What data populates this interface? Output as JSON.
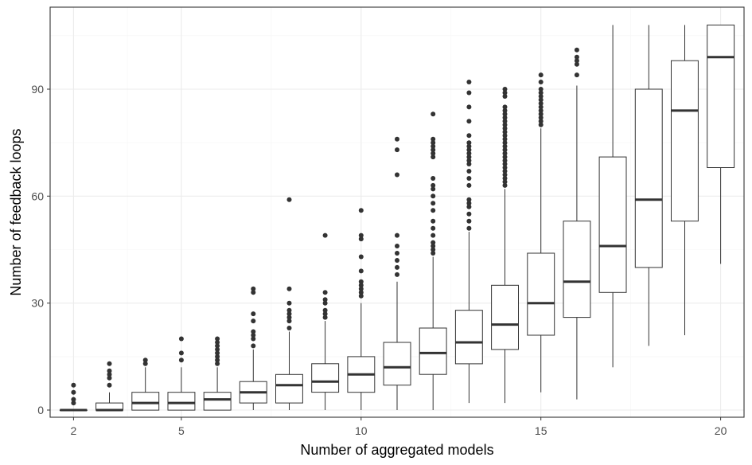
{
  "chart_data": {
    "type": "boxplot",
    "xlabel": "Number of aggregated models",
    "ylabel": "Number of feedback loops",
    "xlim": [
      1.35,
      20.65
    ],
    "ylim": [
      -2,
      113
    ],
    "x_ticks": [
      2,
      5,
      10,
      15,
      20
    ],
    "y_ticks": [
      0,
      30,
      60,
      90
    ],
    "grid": true,
    "legend": "none",
    "colors": {
      "box_fill": "#ffffff",
      "box_stroke": "#333333",
      "median": "#333333",
      "outlier": "#333333",
      "grid_major": "#ebebeb",
      "grid_minor": "#f5f5f5",
      "panel_border": "#333333"
    },
    "boxes": [
      {
        "x": 2,
        "min": 0,
        "q1": 0,
        "median": 0,
        "q3": 0,
        "max": 0,
        "outliers": [
          2,
          3,
          5,
          7
        ]
      },
      {
        "x": 3,
        "min": 0,
        "q1": 0,
        "median": 0,
        "q3": 2,
        "max": 5,
        "outliers": [
          7,
          9,
          10,
          11,
          13
        ]
      },
      {
        "x": 4,
        "min": 0,
        "q1": 0,
        "median": 2,
        "q3": 5,
        "max": 12,
        "outliers": [
          13,
          14
        ]
      },
      {
        "x": 5,
        "min": 0,
        "q1": 0,
        "median": 2,
        "q3": 5,
        "max": 12,
        "outliers": [
          14,
          16,
          20
        ]
      },
      {
        "x": 6,
        "min": 0,
        "q1": 0,
        "median": 3,
        "q3": 5,
        "max": 12,
        "outliers": [
          13,
          14,
          15,
          16,
          17,
          18,
          19,
          20
        ]
      },
      {
        "x": 7,
        "min": 0,
        "q1": 2,
        "median": 5,
        "q3": 8,
        "max": 17,
        "outliers": [
          18,
          20,
          21,
          22,
          25,
          27,
          33,
          34
        ]
      },
      {
        "x": 8,
        "min": 0,
        "q1": 2,
        "median": 7,
        "q3": 10,
        "max": 22,
        "outliers": [
          23,
          25,
          26,
          27,
          28,
          30,
          34,
          59
        ]
      },
      {
        "x": 9,
        "min": 0,
        "q1": 5,
        "median": 8,
        "q3": 13,
        "max": 25,
        "outliers": [
          26,
          27,
          28,
          30,
          31,
          33,
          49
        ]
      },
      {
        "x": 10,
        "min": 0,
        "q1": 5,
        "median": 10,
        "q3": 15,
        "max": 30,
        "outliers": [
          32,
          33,
          34,
          35,
          36,
          39,
          43,
          48,
          49,
          56
        ]
      },
      {
        "x": 11,
        "min": 0,
        "q1": 7,
        "median": 12,
        "q3": 19,
        "max": 36,
        "outliers": [
          38,
          40,
          42,
          44,
          46,
          49,
          66,
          73,
          76
        ]
      },
      {
        "x": 12,
        "min": 0,
        "q1": 10,
        "median": 16,
        "q3": 23,
        "max": 43,
        "outliers": [
          44,
          45,
          46,
          47,
          49,
          51,
          53,
          56,
          58,
          60,
          62,
          63,
          65,
          71,
          72,
          73,
          74,
          75,
          76,
          83
        ]
      },
      {
        "x": 13,
        "min": 2,
        "q1": 13,
        "median": 19,
        "q3": 28,
        "max": 50,
        "outliers": [
          51,
          53,
          55,
          57,
          58,
          59,
          63,
          65,
          67,
          69,
          70,
          71,
          72,
          73,
          74,
          75,
          77,
          81,
          85,
          89,
          92
        ]
      },
      {
        "x": 14,
        "min": 2,
        "q1": 17,
        "median": 24,
        "q3": 35,
        "max": 62,
        "outliers": [
          63,
          64,
          65,
          66,
          67,
          68,
          69,
          70,
          71,
          72,
          73,
          74,
          75,
          76,
          77,
          78,
          79,
          80,
          81,
          82,
          83,
          84,
          85,
          88,
          89,
          90
        ]
      },
      {
        "x": 15,
        "min": 5,
        "q1": 21,
        "median": 30,
        "q3": 44,
        "max": 79,
        "outliers": [
          80,
          81,
          82,
          83,
          84,
          85,
          86,
          87,
          88,
          89,
          90,
          92,
          94
        ]
      },
      {
        "x": 16,
        "min": 3,
        "q1": 26,
        "median": 36,
        "q3": 53,
        "max": 91,
        "outliers": [
          94,
          97,
          98,
          99,
          101
        ]
      },
      {
        "x": 17,
        "min": 12,
        "q1": 33,
        "median": 46,
        "q3": 71,
        "max": 108,
        "outliers": []
      },
      {
        "x": 18,
        "min": 18,
        "q1": 40,
        "median": 59,
        "q3": 90,
        "max": 108,
        "outliers": []
      },
      {
        "x": 19,
        "min": 21,
        "q1": 53,
        "median": 84,
        "q3": 98,
        "max": 108,
        "outliers": []
      },
      {
        "x": 20,
        "min": 41,
        "q1": 68,
        "median": 99,
        "q3": 108,
        "max": 108,
        "outliers": []
      }
    ]
  }
}
